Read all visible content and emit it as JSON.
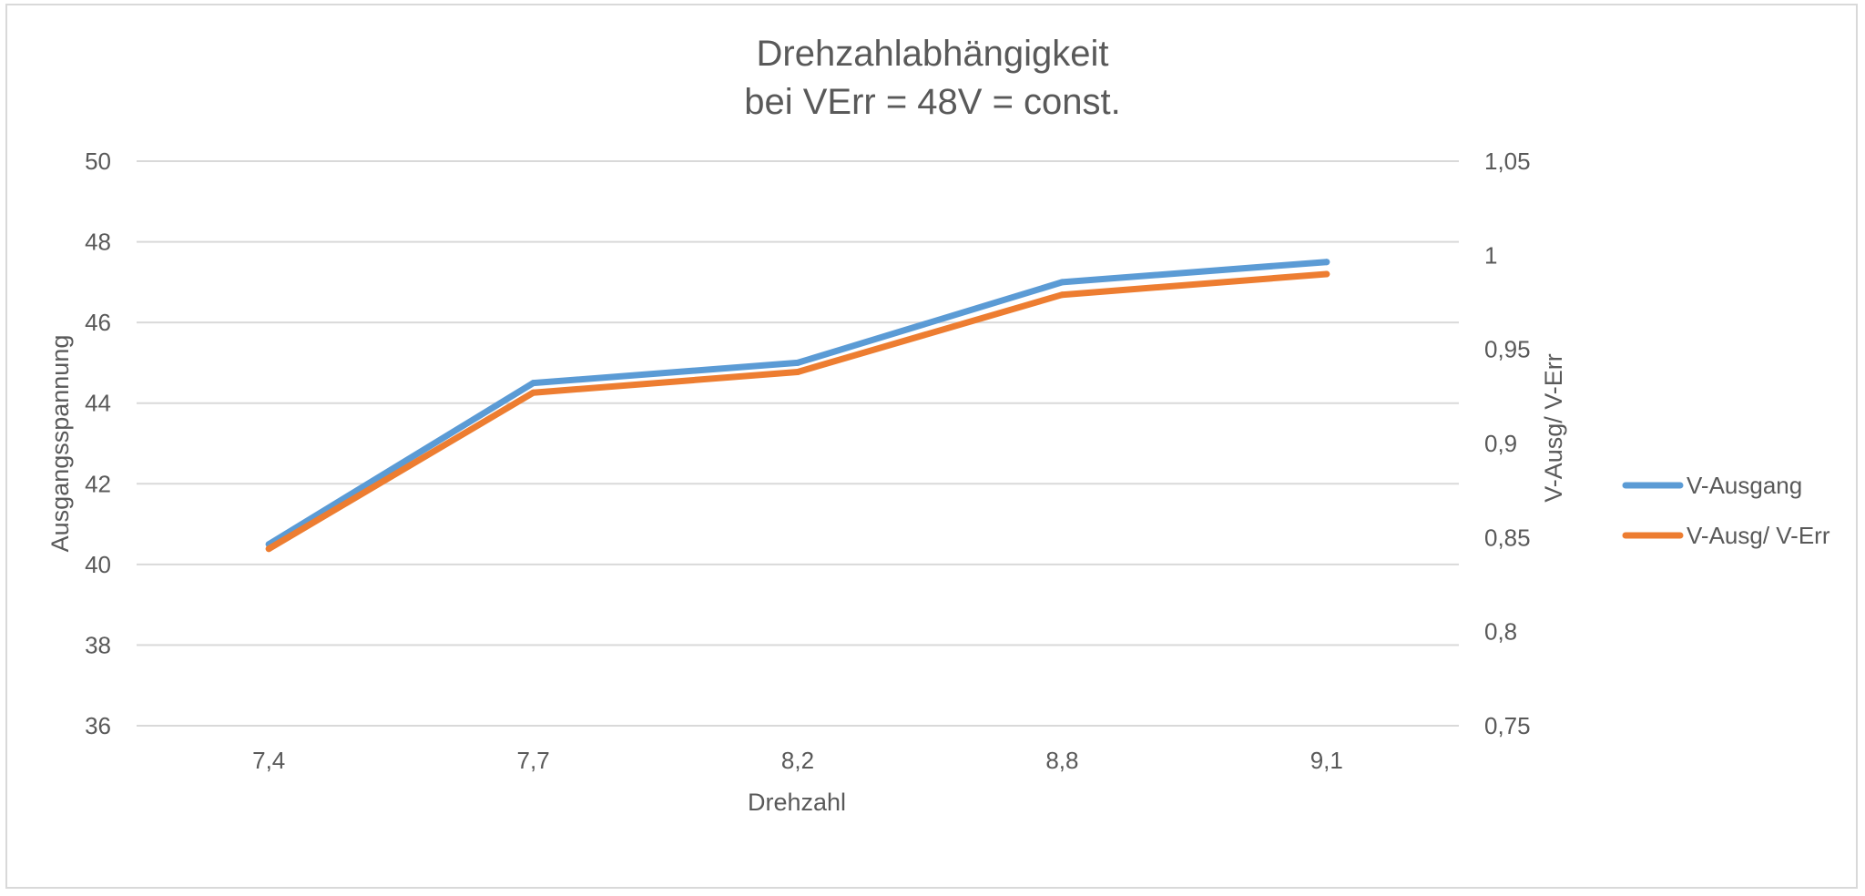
{
  "chart_data": {
    "type": "line",
    "title": [
      "Drehzahlabhängigkeit",
      "bei VErr = 48V = const."
    ],
    "xlabel": "Drehzahl",
    "ylabel": "Ausgangsspannung",
    "y2label": "V-Ausg/ V-Err",
    "categories": [
      "7,4",
      "7,7",
      "8,2",
      "8,8",
      "9,1"
    ],
    "ylim": [
      36,
      50
    ],
    "yticks": [
      "36",
      "38",
      "40",
      "42",
      "44",
      "46",
      "48",
      "50"
    ],
    "y2lim": [
      0.75,
      1.05
    ],
    "y2ticks": [
      "0,75",
      "0,8",
      "0,85",
      "0,9",
      "0,95",
      "1",
      "1,05"
    ],
    "grid": true,
    "legend_position": "right",
    "series": [
      {
        "name": "V-Ausgang",
        "axis": "left",
        "color": "#5b9bd5",
        "values": [
          40.5,
          44.5,
          45.0,
          47.0,
          47.5
        ]
      },
      {
        "name": "V-Ausg/ V-Err",
        "axis": "right",
        "color": "#ed7d31",
        "values": [
          0.844,
          0.927,
          0.938,
          0.979,
          0.99
        ]
      }
    ]
  }
}
